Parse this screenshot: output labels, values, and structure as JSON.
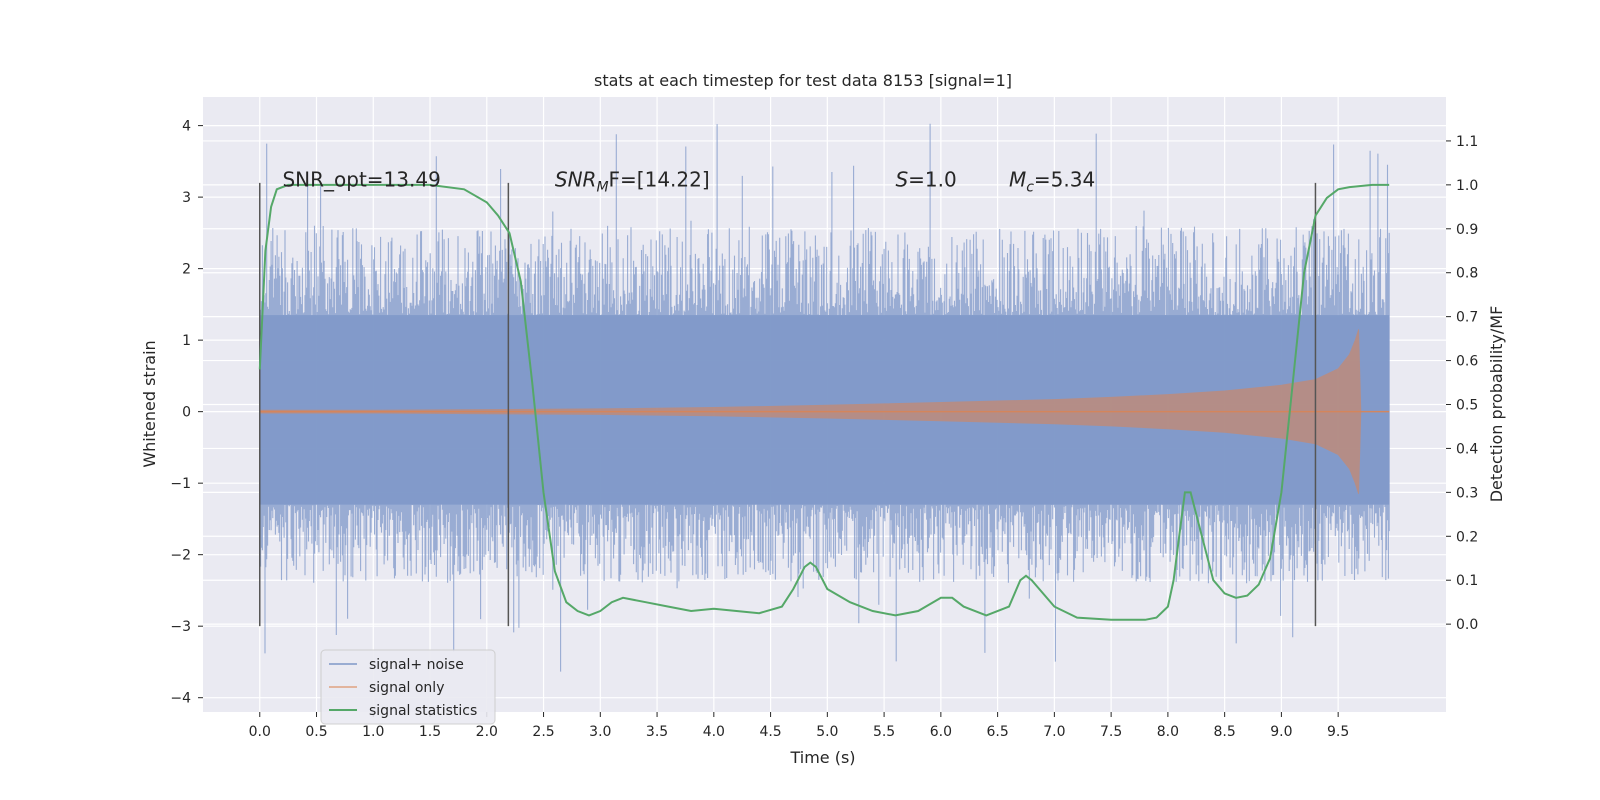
{
  "chart_data": {
    "type": "line",
    "title": "stats at each timestep for test data 8153 [signal=1]",
    "xlabel": "Time (s)",
    "ylabel_left": "Whitened strain",
    "ylabel_right": "Detection probability/MF",
    "xlim": [
      -0.5,
      10.45
    ],
    "ylim_left": [
      -4.2,
      4.4
    ],
    "ylim_right": [
      -0.2,
      1.2
    ],
    "x_ticks": [
      0.0,
      0.5,
      1.0,
      1.5,
      2.0,
      2.5,
      3.0,
      3.5,
      4.0,
      4.5,
      5.0,
      5.5,
      6.0,
      6.5,
      7.0,
      7.5,
      8.0,
      8.5,
      9.0,
      9.5
    ],
    "x_tick_labels": [
      "0.0",
      "0.5",
      "1.0",
      "1.5",
      "2.0",
      "2.5",
      "3.0",
      "3.5",
      "4.0",
      "4.5",
      "5.0",
      "5.5",
      "6.0",
      "6.5",
      "7.0",
      "7.5",
      "8.0",
      "8.5",
      "9.0",
      "9.5"
    ],
    "y_left_ticks": [
      -4,
      -3,
      -2,
      -1,
      0,
      1,
      2,
      3,
      4
    ],
    "y_left_tick_labels": [
      "−4",
      "−3",
      "−2",
      "−1",
      "0",
      "1",
      "2",
      "3",
      "4"
    ],
    "y_right_ticks": [
      0.0,
      0.1,
      0.2,
      0.3,
      0.4,
      0.5,
      0.6,
      0.7,
      0.8,
      0.9,
      1.0,
      1.1
    ],
    "y_right_tick_labels": [
      "0.0",
      "0.1",
      "0.2",
      "0.3",
      "0.4",
      "0.5",
      "0.6",
      "0.7",
      "0.8",
      "0.9",
      "1.0",
      "1.1"
    ],
    "grid": true,
    "legend_position": "lower-left",
    "series": [
      {
        "name": "signal+ noise",
        "color": "#7e97c8",
        "kind": "noise-envelope",
        "x_range": [
          0.0,
          9.95
        ],
        "core_band": [
          -1.3,
          1.35
        ],
        "typical_range": [
          -2.4,
          2.6
        ],
        "extreme_range": [
          -3.8,
          4.05
        ]
      },
      {
        "name": "signal only",
        "color": "#dd8452",
        "kind": "chirp-envelope",
        "x": [
          0.0,
          1.0,
          2.0,
          3.0,
          4.0,
          5.0,
          6.0,
          7.0,
          7.5,
          8.0,
          8.5,
          9.0,
          9.3,
          9.5,
          9.6,
          9.65,
          9.68,
          9.7,
          9.95
        ],
        "amplitude": [
          0.02,
          0.02,
          0.03,
          0.04,
          0.06,
          0.09,
          0.13,
          0.17,
          0.2,
          0.24,
          0.29,
          0.37,
          0.45,
          0.6,
          0.8,
          1.0,
          1.15,
          0.0,
          0.0
        ]
      },
      {
        "name": "signal statistics",
        "color": "#55a868",
        "axis": "right",
        "x": [
          0.0,
          0.05,
          0.1,
          0.15,
          0.25,
          0.5,
          1.0,
          1.5,
          1.8,
          2.0,
          2.1,
          2.2,
          2.3,
          2.4,
          2.5,
          2.6,
          2.7,
          2.8,
          2.9,
          3.0,
          3.1,
          3.2,
          3.4,
          3.6,
          3.8,
          4.0,
          4.2,
          4.4,
          4.6,
          4.7,
          4.8,
          4.85,
          4.9,
          5.0,
          5.2,
          5.4,
          5.6,
          5.8,
          6.0,
          6.1,
          6.2,
          6.4,
          6.6,
          6.7,
          6.75,
          6.8,
          7.0,
          7.2,
          7.5,
          7.8,
          7.9,
          8.0,
          8.05,
          8.1,
          8.15,
          8.2,
          8.3,
          8.4,
          8.5,
          8.6,
          8.7,
          8.8,
          8.9,
          9.0,
          9.1,
          9.2,
          9.3,
          9.4,
          9.5,
          9.6,
          9.8,
          9.95
        ],
        "y": [
          0.58,
          0.85,
          0.95,
          0.99,
          1.0,
          1.0,
          1.0,
          1.0,
          0.99,
          0.96,
          0.93,
          0.89,
          0.78,
          0.55,
          0.3,
          0.12,
          0.05,
          0.03,
          0.02,
          0.03,
          0.05,
          0.06,
          0.05,
          0.04,
          0.03,
          0.035,
          0.03,
          0.025,
          0.04,
          0.08,
          0.13,
          0.14,
          0.13,
          0.08,
          0.05,
          0.03,
          0.02,
          0.03,
          0.06,
          0.06,
          0.04,
          0.02,
          0.04,
          0.1,
          0.11,
          0.1,
          0.04,
          0.015,
          0.01,
          0.01,
          0.015,
          0.04,
          0.1,
          0.2,
          0.3,
          0.3,
          0.2,
          0.1,
          0.07,
          0.06,
          0.065,
          0.09,
          0.15,
          0.3,
          0.55,
          0.8,
          0.93,
          0.97,
          0.99,
          0.995,
          1.0,
          1.0
        ]
      }
    ],
    "vertical_markers": [
      {
        "x": 0.0,
        "y_range": [
          -3.0,
          3.2
        ]
      },
      {
        "x": 2.19,
        "y_range": [
          -3.0,
          3.2
        ]
      },
      {
        "x": 9.3,
        "y_range": [
          -3.0,
          3.2
        ]
      }
    ],
    "annotations": [
      {
        "id": "snr_opt",
        "x": 0.2,
        "y": 3.15,
        "text": "SNR_opt=13.49"
      },
      {
        "id": "snr_mf",
        "x": 2.6,
        "y": 3.15,
        "base": "SNR",
        "sub": "M",
        "rest": "F=[14.22]"
      },
      {
        "id": "s",
        "x": 5.6,
        "y": 3.15,
        "base": "S",
        "rest": "=1.0"
      },
      {
        "id": "mc",
        "x": 6.6,
        "y": 3.15,
        "base": "M",
        "sub": "c",
        "rest": "=5.34"
      }
    ]
  }
}
